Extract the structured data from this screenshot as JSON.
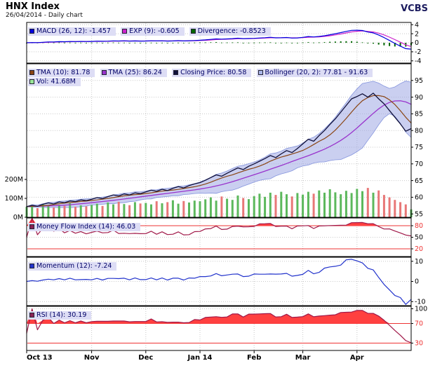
{
  "header": {
    "title": "HNX Index",
    "subtitle": "26/04/2014 - Daily chart",
    "brand": "VCBS"
  },
  "colors": {
    "legend_bg": "#ddddf5",
    "legend_text": "#000066",
    "grid": "#c9c9c9",
    "red_line": "#ee3333",
    "fill_red": "#ff4040",
    "brand": "#1b1b5e",
    "macd": "#0000dd",
    "exp": "#cc22cc",
    "divergence": "#006600",
    "tma10": "#8a4513",
    "tma25": "#9933cc",
    "close": "#10103a",
    "bollinger_fill": "rgba(158,168,228,0.55)",
    "bollinger_stroke": "#8494dd",
    "vol_up": "#5cb85c",
    "vol_down": "#e87777",
    "mfi": "#a01848",
    "momentum": "#2233cc",
    "rsi": "#a01848"
  },
  "chart_data": {
    "type": "line",
    "title": "HNX Index",
    "n_points": 72,
    "x_labels": [
      {
        "label": "Oct 13",
        "index": 0
      },
      {
        "label": "Nov",
        "index": 12
      },
      {
        "label": "Dec",
        "index": 22
      },
      {
        "label": "Jan 14",
        "index": 32
      },
      {
        "label": "Feb",
        "index": 42
      },
      {
        "label": "Mar",
        "index": 51
      },
      {
        "label": "Apr",
        "index": 61
      }
    ],
    "close": [
      57.2,
      57.6,
      57.3,
      57.9,
      58.3,
      58.0,
      58.6,
      58.4,
      58.9,
      58.7,
      59.2,
      59.0,
      59.4,
      59.9,
      59.6,
      60.2,
      60.7,
      60.4,
      61.0,
      60.7,
      61.3,
      61.1,
      61.6,
      62.1,
      61.8,
      62.4,
      62.0,
      62.7,
      63.2,
      62.8,
      63.5,
      64.0,
      64.4,
      65.1,
      65.9,
      66.7,
      66.3,
      67.2,
      68.0,
      68.8,
      68.3,
      69.3,
      70.0,
      70.8,
      71.6,
      72.5,
      71.9,
      73.0,
      74.0,
      73.4,
      74.6,
      76.0,
      77.4,
      76.8,
      78.5,
      80.0,
      81.8,
      83.5,
      85.5,
      87.5,
      89.5,
      90.2,
      91.0,
      90.0,
      91.2,
      89.5,
      88.0,
      86.0,
      84.0,
      82.0,
      79.8,
      80.58
    ],
    "volume_m": [
      55,
      62,
      48,
      70,
      58,
      52,
      66,
      60,
      74,
      56,
      63,
      58,
      65,
      72,
      60,
      78,
      68,
      82,
      70,
      64,
      80,
      73,
      76,
      68,
      85,
      74,
      80,
      90,
      72,
      86,
      78,
      88,
      85,
      95,
      105,
      88,
      110,
      98,
      92,
      115,
      102,
      96,
      112,
      125,
      108,
      130,
      118,
      135,
      122,
      110,
      128,
      120,
      135,
      125,
      142,
      130,
      148,
      132,
      122,
      140,
      128,
      150,
      138,
      155,
      130,
      142,
      118,
      105,
      92,
      80,
      68,
      41.68
    ],
    "panels": [
      {
        "id": "macd",
        "legend": [
          {
            "label": "MACD (26, 12): -1.457",
            "color": "#0000dd"
          },
          {
            "label": "EXP (9): -0.605",
            "color": "#cc22cc"
          },
          {
            "label": "Divergence: -0.8523",
            "color": "#006600"
          }
        ],
        "yticks": [
          4,
          2,
          0,
          -2,
          -4
        ],
        "ylim": [
          -4.5,
          4.5
        ]
      },
      {
        "id": "price",
        "legend": [
          {
            "label": "TMA (10): 81.78",
            "color": "#8a4513"
          },
          {
            "label": "TMA (25): 86.24",
            "color": "#9933cc"
          },
          {
            "label": "Closing Price: 80.58",
            "color": "#10103a"
          },
          {
            "label": "Bollinger (20, 2): 77.81 - 91.63",
            "color": "#aab6e8"
          }
        ],
        "legend2": [
          {
            "label": "Vol: 41.68M",
            "color": "#99e699"
          }
        ],
        "yticks": [
          95,
          90,
          85,
          80,
          75,
          70,
          65,
          60,
          55
        ],
        "ylim": [
          54,
          100
        ],
        "volume_ticks": [
          {
            "label": "200M",
            "value": 200
          },
          {
            "label": "100M",
            "value": 100
          },
          {
            "label": "0M",
            "value": 0
          }
        ]
      },
      {
        "id": "mfi",
        "legend": [
          {
            "label": "Money Flow Index (14): 46.03",
            "color": "#882255"
          }
        ],
        "yticks": [
          80,
          50,
          20
        ],
        "red_levels": [
          80,
          20
        ],
        "ylim": [
          0,
          100
        ]
      },
      {
        "id": "momentum",
        "legend": [
          {
            "label": "Momentum (12): -7.24",
            "color": "#2233cc"
          }
        ],
        "yticks": [
          10,
          0,
          -10
        ],
        "ylim": [
          -12,
          12
        ]
      },
      {
        "id": "rsi",
        "legend": [
          {
            "label": "RSI (14): 30.19",
            "color": "#882255"
          }
        ],
        "yticks": [
          100,
          70,
          30
        ],
        "red_levels": [
          70,
          30
        ],
        "ylim": [
          15,
          105
        ]
      }
    ]
  }
}
